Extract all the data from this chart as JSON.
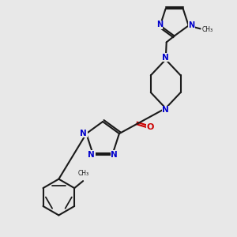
{
  "background_color": "#e8e8e8",
  "bond_color": "#1a1a1a",
  "nitrogen_color": "#0000cc",
  "oxygen_color": "#cc0000",
  "lw": 1.5,
  "figsize": [
    3.0,
    3.0
  ],
  "dpi": 100,
  "xlim": [
    -0.7,
    0.7
  ],
  "ylim": [
    -0.75,
    0.75
  ]
}
